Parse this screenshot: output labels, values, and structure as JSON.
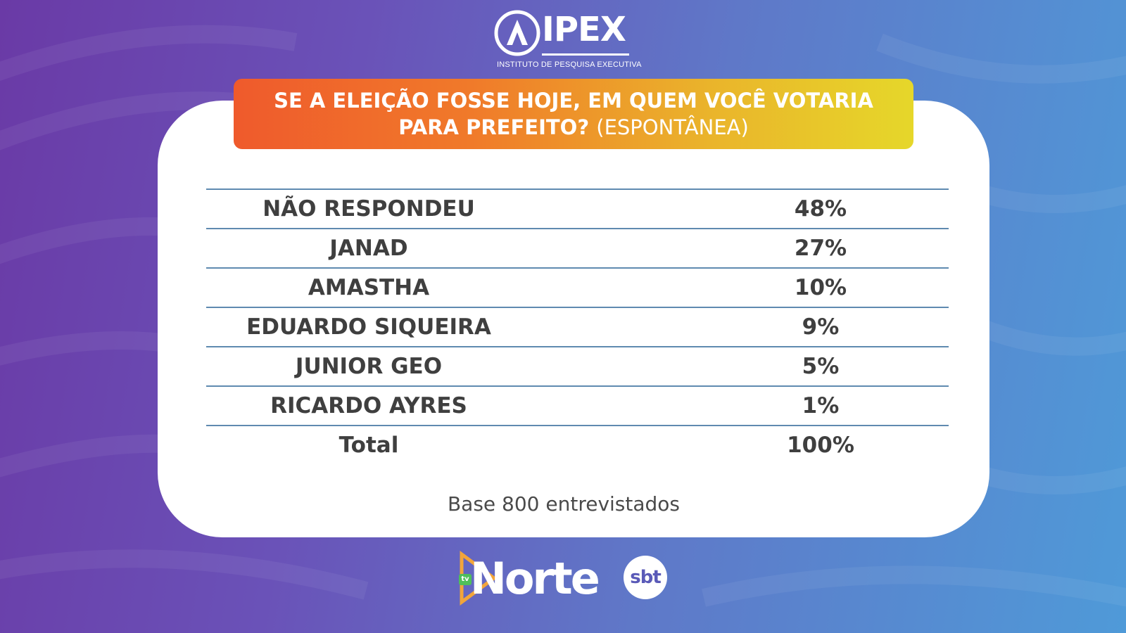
{
  "logo": {
    "name": "IPEX",
    "subtitle": "INSTITUTO DE PESQUISA EXECUTIVA"
  },
  "banner": {
    "line1": "SE A ELEIÇÃO FOSSE HOJE, EM QUEM VOCÊ VOTARIA",
    "line2_bold": "PARA PREFEITO?",
    "line2_regular": "(ESPONTÂNEA)"
  },
  "chart_data": {
    "type": "table",
    "title": "SE A ELEIÇÃO FOSSE HOJE, EM QUEM VOCÊ VOTARIA PARA PREFEITO? (ESPONTÂNEA)",
    "rows": [
      {
        "label": "NÃO RESPONDEU",
        "value": "48%"
      },
      {
        "label": "JANAD",
        "value": "27%"
      },
      {
        "label": "AMASTHA",
        "value": "10%"
      },
      {
        "label": "EDUARDO SIQUEIRA",
        "value": "9%"
      },
      {
        "label": "JUNIOR GEO",
        "value": "5%"
      },
      {
        "label": "RICARDO AYRES",
        "value": "1%"
      }
    ],
    "total": {
      "label": "Total",
      "value": "100%"
    },
    "note": "Base 800 entrevistados"
  },
  "footer": {
    "tv_tag": "tv",
    "channel": "Norte",
    "network": "sbt"
  },
  "colors": {
    "banner_start": "#ef5a2c",
    "banner_end": "#e6d72a",
    "row_line": "#5f8ab0",
    "text": "#3f3f3f"
  }
}
